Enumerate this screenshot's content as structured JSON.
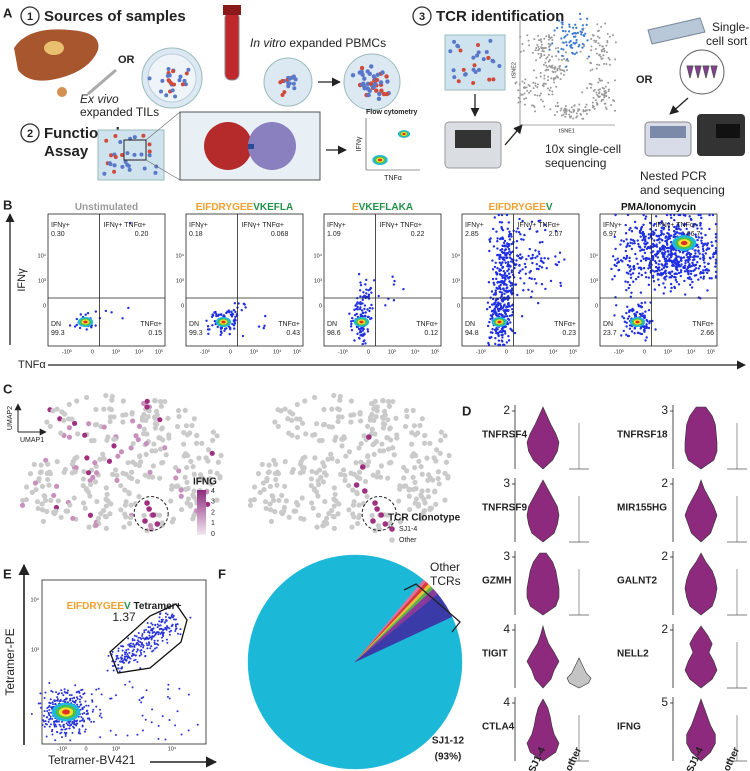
{
  "panel_a": {
    "label": "A",
    "step1": {
      "number": "1",
      "title": "Sources of samples"
    },
    "or1": "OR",
    "tils": [
      "Ex vivo",
      "expanded TILs"
    ],
    "pbmcs": [
      "In vitro",
      " expanded PBMCs"
    ],
    "step2": {
      "number": "2",
      "title": [
        "Functional",
        "Assay"
      ]
    },
    "flow": {
      "title": "Flow cytometry",
      "y": "IFNγ",
      "x": "TNFα"
    },
    "step3": {
      "number": "3",
      "title": "TCR identification"
    },
    "tsne": {
      "y": "tSNE2",
      "x": "tSNE1"
    },
    "tenx": [
      "10x single-cell",
      "sequencing"
    ],
    "or2": "OR",
    "sort": [
      "Single-",
      "cell sort"
    ],
    "pcr": [
      "Nested PCR",
      "and sequencing"
    ]
  },
  "panel_b": {
    "label": "B",
    "ylabel": "IFNγ",
    "xlabel": "TNFα",
    "yticks": [
      "10⁴",
      "10³",
      "0"
    ],
    "xticks": [
      "-10³",
      "0",
      "10³",
      "10⁴",
      "10⁵"
    ],
    "quadrants": {
      "ul": "IFNγ+",
      "ur": "IFNγ+ TNFα+",
      "lr": "TNFα+",
      "ll": "DN"
    },
    "plots": [
      {
        "title": [
          {
            "text": "Unstimulated",
            "color": "#9a9a9a"
          }
        ],
        "ul": "0.30",
        "ur": "0.20",
        "lr": "0.15",
        "ll": "99.3"
      },
      {
        "title": [
          {
            "text": "EIFDRYGEE",
            "color": "#f0a030"
          },
          {
            "text": "VKEFLA",
            "color": "#23924a"
          }
        ],
        "ul": "0.18",
        "ur": "0.068",
        "lr": "0.43",
        "ll": "99.3"
      },
      {
        "title": [
          {
            "text": "E",
            "color": "#f0a030"
          },
          {
            "text": "VKEFLAKA",
            "color": "#23924a"
          }
        ],
        "ul": "1.09",
        "ur": "0.22",
        "lr": "0.12",
        "ll": "98.6"
      },
      {
        "title": [
          {
            "text": "EIFDRYGEE",
            "color": "#f0a030"
          },
          {
            "text": "V",
            "color": "#23924a"
          }
        ],
        "ul": "2.85",
        "ur": "2.07",
        "lr": "0.23",
        "ll": "94.8"
      },
      {
        "title": [
          {
            "text": "PMA/Ionomycin",
            "color": "#111111"
          }
        ],
        "ul": "6.97",
        "ur": "66.7",
        "lr": "2.66",
        "ll": "23.7"
      }
    ]
  },
  "panel_c": {
    "label": "C",
    "umap": {
      "y": "UMAP2",
      "x": "UMAP1"
    },
    "ifng": {
      "title": "IFNG",
      "ticks": [
        4,
        3,
        2,
        1,
        0
      ]
    },
    "clonotype": {
      "title": "TCR Clonotype",
      "items": [
        {
          "name": "SJ1-4",
          "color": "#a0307f"
        },
        {
          "name": "Other",
          "color": "#cccccc"
        }
      ]
    }
  },
  "panel_d": {
    "label": "D",
    "genes": [
      {
        "name": "TNFRSF4",
        "max": 2
      },
      {
        "name": "TNFRSF18",
        "max": 3
      },
      {
        "name": "TNFRSF9",
        "max": 3
      },
      {
        "name": "MIR155HG",
        "max": 2
      },
      {
        "name": "GZMH",
        "max": 3
      },
      {
        "name": "GALNT2",
        "max": 2
      },
      {
        "name": "TIGIT",
        "max": 4
      },
      {
        "name": "NELL2",
        "max": 2
      },
      {
        "name": "CTLA4",
        "max": 4
      },
      {
        "name": "IFNG",
        "max": 5
      }
    ],
    "groups": [
      {
        "name": "SJ1-4",
        "color": "#a0307f"
      },
      {
        "name": "other",
        "color": "#8a8a8a"
      }
    ]
  },
  "panel_e": {
    "label": "E",
    "gate": {
      "title": [
        {
          "text": "EIFDRYGEE",
          "color": "#f0a030"
        },
        {
          "text": "V",
          "color": "#23924a"
        },
        {
          "text": " Tetramer+",
          "color": "#222222"
        }
      ],
      "value": "1.37"
    },
    "ylabel": "Tetramer-PE",
    "xlabel": "Tetramer-BV421",
    "yticks": [
      "10⁴",
      "10³"
    ],
    "xticks": [
      "-10³",
      "0",
      "10³",
      "10⁴"
    ]
  },
  "chart_data": {
    "type": "pie",
    "panel_label": "F",
    "categories": [
      "SJ1-12",
      null,
      null,
      null,
      null,
      null,
      null
    ],
    "values": [
      93,
      0.5,
      0.5,
      0.5,
      0.5,
      1,
      4
    ],
    "value_labels": [
      "(93%)",
      null,
      null,
      null,
      null,
      null,
      null
    ],
    "colors": [
      "#1bb8d8",
      "#e0709a",
      "#d63a3a",
      "#e6c23a",
      "#5bb04a",
      "#8a3a9a",
      "#3a3aa8"
    ],
    "annotation": [
      "Other",
      "TCRs"
    ]
  }
}
